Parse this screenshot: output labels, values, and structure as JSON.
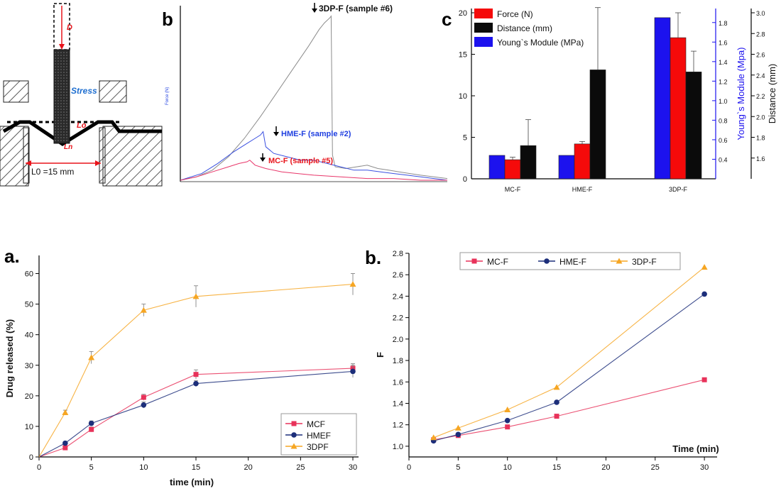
{
  "panels": {
    "top_b": "b",
    "top_c": "c",
    "bottom_a": "a.",
    "bottom_b": "b."
  },
  "schematic": {
    "stress_label": "Stress",
    "d_label": "D",
    "lo_label": "Lo",
    "ln_label": "Ln",
    "l0_label": "L0 =15 mm",
    "colors": {
      "hatch": "#333333",
      "rod": "#2a2a2a",
      "accent": "#e8141b",
      "stress": "#1f6fd0"
    }
  },
  "colors": {
    "mc": "#e8141b",
    "hme": "#1f3fe0",
    "tdp": "#2a2a2a",
    "red": "#f50a0a",
    "black": "#0b0b0b",
    "blue": "#1c12ee",
    "orange": "#f6a623",
    "navy": "#1c2e7a",
    "pink": "#e8325a",
    "lightblue": "#6fa3d8"
  },
  "chart_data": [
    {
      "id": "force_curves",
      "type": "line",
      "title": "",
      "ylabel": "Force (N)",
      "xlabel": "",
      "xlim": [
        0,
        100
      ],
      "ylim": [
        0,
        100
      ],
      "series": [
        {
          "name": "3DP-F (sample #6)",
          "color": "#8c8c8c",
          "x": [
            0,
            6,
            12,
            18,
            24,
            30,
            36,
            42,
            48,
            52,
            54,
            56,
            56.5,
            57,
            58,
            62,
            66,
            70,
            74,
            78,
            82,
            86,
            90,
            95,
            100
          ],
          "y": [
            0,
            2,
            6,
            14,
            25,
            38,
            52,
            66,
            80,
            90,
            94,
            97,
            98,
            15,
            8,
            7,
            8,
            9,
            7,
            6,
            5,
            4,
            3,
            2,
            1
          ]
        },
        {
          "name": "HME-F (sample #2)",
          "color": "#3a50e0",
          "x": [
            0,
            8,
            14,
            20,
            25,
            28,
            30,
            31,
            32,
            35,
            40,
            45,
            50,
            55,
            60,
            65,
            70,
            75,
            80,
            85,
            90,
            95,
            100
          ],
          "y": [
            0,
            4,
            10,
            17,
            22,
            25,
            27,
            29,
            20,
            16,
            14,
            12,
            12,
            10,
            8,
            6,
            6,
            5,
            4,
            3,
            2,
            1,
            0
          ]
        },
        {
          "name": "MC-F (sample #5)",
          "color": "#e8366a",
          "x": [
            0,
            6,
            12,
            18,
            22,
            25,
            26,
            28,
            32,
            38,
            44,
            50,
            60,
            70,
            80,
            90,
            100
          ],
          "y": [
            0,
            2,
            5,
            8,
            10,
            11,
            12,
            9,
            7,
            5,
            4,
            3,
            2,
            1,
            1,
            0,
            0
          ]
        }
      ],
      "annotations": [
        "3DP-F (sample #6)",
        "HME-F (sample #2)",
        "MC-F (sample #5)"
      ]
    },
    {
      "id": "mechanical_bars",
      "type": "bar",
      "categories": [
        "MC-F",
        "HME-F",
        "3DP-F"
      ],
      "series": [
        {
          "name": "Young`s Module (MPa)",
          "axis": "right1",
          "values": [
            0.44,
            0.44,
            1.85
          ],
          "color": "#1c12ee"
        },
        {
          "name": "Force (N)",
          "axis": "left",
          "values": [
            2.3,
            4.2,
            17.0
          ],
          "errors": [
            0.3,
            0.3,
            3.0
          ],
          "color": "#f50a0a"
        },
        {
          "name": "Distance (mm)",
          "axis": "right2",
          "values": [
            1.72,
            2.45,
            2.43
          ],
          "errors": [
            0.25,
            0.6,
            0.2
          ],
          "color": "#0b0b0b"
        }
      ],
      "left_axis": {
        "ylim": [
          0,
          20
        ],
        "ticks": [
          "0",
          "5",
          "10",
          "15",
          "20"
        ]
      },
      "right_axis1": {
        "label": "Young`s Module (Mpa)",
        "ylim": [
          0.2,
          1.9
        ],
        "ticks": [
          "0.4",
          "0.6",
          "0.8",
          "1.0",
          "1.2",
          "1.4",
          "1.6",
          "1.8"
        ]
      },
      "right_axis2": {
        "label": "Distance (mm)",
        "ylim": [
          1.4,
          3.0
        ],
        "ticks": [
          "1.6",
          "1.8",
          "2.0",
          "2.2",
          "2.4",
          "2.6",
          "2.8",
          "3.0"
        ]
      }
    },
    {
      "id": "drug_release",
      "type": "line",
      "xlabel": "time (min)",
      "ylabel": "Drug released (%)",
      "xlim": [
        0,
        30
      ],
      "ylim": [
        0,
        65
      ],
      "xticks": [
        "0",
        "5",
        "10",
        "15",
        "20",
        "25",
        "30"
      ],
      "yticks": [
        "0",
        "10",
        "20",
        "30",
        "40",
        "50",
        "60"
      ],
      "x": [
        0,
        2.5,
        5,
        10,
        15,
        30
      ],
      "series": [
        {
          "name": "MCF",
          "values": [
            0,
            3,
            9,
            19.5,
            27,
            29
          ],
          "errors": [
            0,
            0.5,
            0.8,
            1,
            1.5,
            1.5
          ],
          "color": "#e8325a",
          "marker": "square"
        },
        {
          "name": "HMEF",
          "values": [
            0,
            4.5,
            11,
            17,
            24,
            28
          ],
          "errors": [
            0,
            0.5,
            0.8,
            1,
            1,
            2
          ],
          "color": "#1c2e7a",
          "marker": "circle"
        },
        {
          "name": "3DPF",
          "values": [
            0,
            14.5,
            32.5,
            48,
            52.5,
            56.5
          ],
          "errors": [
            0,
            0.8,
            2,
            2,
            3.5,
            3.5
          ],
          "color": "#f6a623",
          "marker": "triangle"
        }
      ],
      "legend": "bottom-right"
    },
    {
      "id": "f_factor",
      "type": "line",
      "xlabel": "Time (min)",
      "ylabel": "F",
      "xlim": [
        0,
        31
      ],
      "ylim": [
        0.9,
        2.8
      ],
      "xticks": [
        "0",
        "5",
        "10",
        "15",
        "20",
        "25",
        "30"
      ],
      "yticks": [
        "1.0",
        "1.2",
        "1.4",
        "1.6",
        "1.8",
        "2.0",
        "2.2",
        "2.4",
        "2.6",
        "2.8"
      ],
      "x": [
        2.5,
        5,
        10,
        15,
        30
      ],
      "series": [
        {
          "name": "MC-F",
          "values": [
            1.06,
            1.1,
            1.18,
            1.28,
            1.62
          ],
          "color": "#e8325a",
          "marker": "square"
        },
        {
          "name": "HME-F",
          "values": [
            1.05,
            1.11,
            1.24,
            1.41,
            2.42
          ],
          "color": "#1c2e7a",
          "marker": "circle"
        },
        {
          "name": "3DP-F",
          "values": [
            1.08,
            1.17,
            1.34,
            1.55,
            2.67
          ],
          "color": "#f6a623",
          "marker": "triangle"
        }
      ],
      "legend": "top"
    }
  ]
}
